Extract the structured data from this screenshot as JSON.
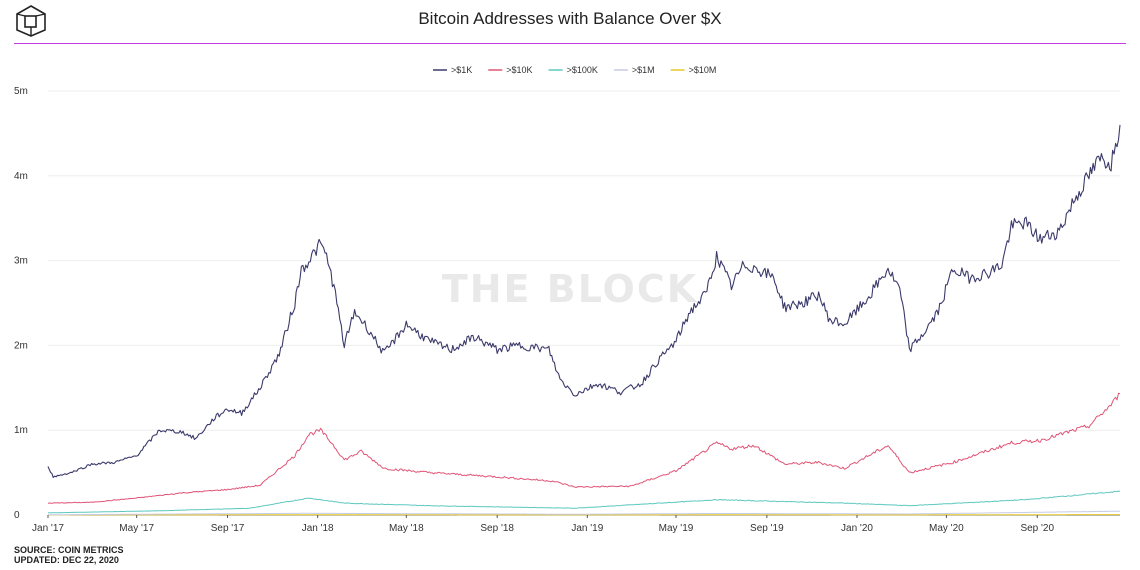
{
  "header": {
    "title": "Bitcoin Addresses with Balance Over $X",
    "logo_icon": "cube-logo-icon",
    "accent_color": "#c13be0"
  },
  "watermark": "THE BLOCK",
  "footer": {
    "source": "SOURCE: COIN METRICS",
    "updated": "UPDATED: DEC 22, 2020"
  },
  "chart_data": {
    "type": "line",
    "x_ticks": [
      "Jan '17",
      "May '17",
      "Sep '17",
      "Jan '18",
      "May '18",
      "Sep '18",
      "Jan '19",
      "May '19",
      "Sep '19",
      "Jan '20",
      "May '20",
      "Sep '20"
    ],
    "y_ticks": [
      "0",
      "1m",
      "2m",
      "3m",
      "4m",
      "5m"
    ],
    "ylim": [
      0,
      5000000
    ],
    "xlim": [
      "2017-01-01",
      "2020-12-22"
    ],
    "grid": true,
    "legend_position": "top-center",
    "series": [
      {
        "name": ">$1K",
        "color": "#3b3a6b",
        "points": [
          [
            "2017-01-01",
            580000
          ],
          [
            "2017-01-08",
            450000
          ],
          [
            "2017-02-01",
            500000
          ],
          [
            "2017-03-01",
            600000
          ],
          [
            "2017-04-01",
            620000
          ],
          [
            "2017-05-01",
            700000
          ],
          [
            "2017-06-01",
            1000000
          ],
          [
            "2017-07-01",
            980000
          ],
          [
            "2017-07-20",
            900000
          ],
          [
            "2017-08-15",
            1150000
          ],
          [
            "2017-09-01",
            1250000
          ],
          [
            "2017-09-20",
            1200000
          ],
          [
            "2017-10-15",
            1500000
          ],
          [
            "2017-11-10",
            1900000
          ],
          [
            "2017-12-01",
            2500000
          ],
          [
            "2017-12-10",
            2900000
          ],
          [
            "2017-12-20",
            3000000
          ],
          [
            "2018-01-05",
            3200000
          ],
          [
            "2018-01-15",
            3000000
          ],
          [
            "2018-01-25",
            2600000
          ],
          [
            "2018-02-06",
            2000000
          ],
          [
            "2018-02-20",
            2400000
          ],
          [
            "2018-03-10",
            2200000
          ],
          [
            "2018-04-01",
            1900000
          ],
          [
            "2018-05-01",
            2250000
          ],
          [
            "2018-06-01",
            2050000
          ],
          [
            "2018-07-01",
            1950000
          ],
          [
            "2018-08-01",
            2100000
          ],
          [
            "2018-09-01",
            1950000
          ],
          [
            "2018-10-01",
            2000000
          ],
          [
            "2018-11-10",
            1950000
          ],
          [
            "2018-11-25",
            1600000
          ],
          [
            "2018-12-15",
            1420000
          ],
          [
            "2019-01-15",
            1550000
          ],
          [
            "2019-02-15",
            1450000
          ],
          [
            "2019-03-15",
            1550000
          ],
          [
            "2019-04-05",
            1800000
          ],
          [
            "2019-05-01",
            2050000
          ],
          [
            "2019-05-20",
            2400000
          ],
          [
            "2019-06-10",
            2600000
          ],
          [
            "2019-06-25",
            3050000
          ],
          [
            "2019-07-15",
            2700000
          ],
          [
            "2019-08-01",
            2950000
          ],
          [
            "2019-08-20",
            2900000
          ],
          [
            "2019-09-10",
            2800000
          ],
          [
            "2019-09-25",
            2450000
          ],
          [
            "2019-10-20",
            2500000
          ],
          [
            "2019-11-10",
            2600000
          ],
          [
            "2019-11-25",
            2300000
          ],
          [
            "2019-12-15",
            2250000
          ],
          [
            "2020-01-15",
            2550000
          ],
          [
            "2020-02-12",
            2900000
          ],
          [
            "2020-02-28",
            2650000
          ],
          [
            "2020-03-12",
            1950000
          ],
          [
            "2020-04-01",
            2150000
          ],
          [
            "2020-04-20",
            2400000
          ],
          [
            "2020-05-10",
            2900000
          ],
          [
            "2020-06-01",
            2800000
          ],
          [
            "2020-06-25",
            2850000
          ],
          [
            "2020-07-15",
            2950000
          ],
          [
            "2020-07-28",
            3400000
          ],
          [
            "2020-08-15",
            3450000
          ],
          [
            "2020-09-05",
            3250000
          ],
          [
            "2020-10-01",
            3350000
          ],
          [
            "2020-10-20",
            3700000
          ],
          [
            "2020-11-10",
            4000000
          ],
          [
            "2020-11-25",
            4200000
          ],
          [
            "2020-12-10",
            4150000
          ],
          [
            "2020-12-22",
            4600000
          ]
        ]
      },
      {
        "name": ">$10K",
        "color": "#e05577",
        "points": [
          [
            "2017-01-01",
            140000
          ],
          [
            "2017-03-01",
            150000
          ],
          [
            "2017-05-01",
            200000
          ],
          [
            "2017-07-01",
            260000
          ],
          [
            "2017-09-01",
            300000
          ],
          [
            "2017-10-15",
            350000
          ],
          [
            "2017-12-01",
            700000
          ],
          [
            "2017-12-20",
            950000
          ],
          [
            "2018-01-05",
            1000000
          ],
          [
            "2018-01-20",
            850000
          ],
          [
            "2018-02-06",
            650000
          ],
          [
            "2018-03-01",
            750000
          ],
          [
            "2018-04-01",
            550000
          ],
          [
            "2018-06-01",
            500000
          ],
          [
            "2018-09-01",
            450000
          ],
          [
            "2018-11-15",
            400000
          ],
          [
            "2018-12-15",
            330000
          ],
          [
            "2019-03-01",
            340000
          ],
          [
            "2019-05-01",
            520000
          ],
          [
            "2019-06-25",
            850000
          ],
          [
            "2019-07-15",
            780000
          ],
          [
            "2019-08-15",
            820000
          ],
          [
            "2019-09-25",
            600000
          ],
          [
            "2019-11-10",
            620000
          ],
          [
            "2019-12-15",
            550000
          ],
          [
            "2020-02-12",
            820000
          ],
          [
            "2020-03-12",
            500000
          ],
          [
            "2020-05-10",
            620000
          ],
          [
            "2020-07-28",
            850000
          ],
          [
            "2020-09-05",
            880000
          ],
          [
            "2020-11-10",
            1050000
          ],
          [
            "2020-12-10",
            1300000
          ],
          [
            "2020-12-22",
            1430000
          ]
        ]
      },
      {
        "name": ">$100K",
        "color": "#5ec8c0",
        "points": [
          [
            "2017-01-01",
            25000
          ],
          [
            "2017-06-01",
            50000
          ],
          [
            "2017-10-01",
            80000
          ],
          [
            "2017-12-20",
            200000
          ],
          [
            "2018-02-06",
            140000
          ],
          [
            "2018-06-01",
            110000
          ],
          [
            "2018-12-15",
            80000
          ],
          [
            "2019-06-25",
            180000
          ],
          [
            "2019-12-15",
            140000
          ],
          [
            "2020-03-12",
            110000
          ],
          [
            "2020-08-15",
            180000
          ],
          [
            "2020-12-22",
            280000
          ]
        ]
      },
      {
        "name": ">$1M",
        "color": "#c7cbe3",
        "points": [
          [
            "2017-01-01",
            3000
          ],
          [
            "2017-12-20",
            20000
          ],
          [
            "2018-12-15",
            9000
          ],
          [
            "2019-06-25",
            18000
          ],
          [
            "2020-03-12",
            12000
          ],
          [
            "2020-12-22",
            45000
          ]
        ]
      },
      {
        "name": ">$10M",
        "color": "#e6c82a",
        "points": [
          [
            "2017-01-01",
            400
          ],
          [
            "2017-12-20",
            2500
          ],
          [
            "2018-12-15",
            1200
          ],
          [
            "2019-06-25",
            2200
          ],
          [
            "2020-03-12",
            1500
          ],
          [
            "2020-12-22",
            5000
          ]
        ]
      }
    ]
  }
}
